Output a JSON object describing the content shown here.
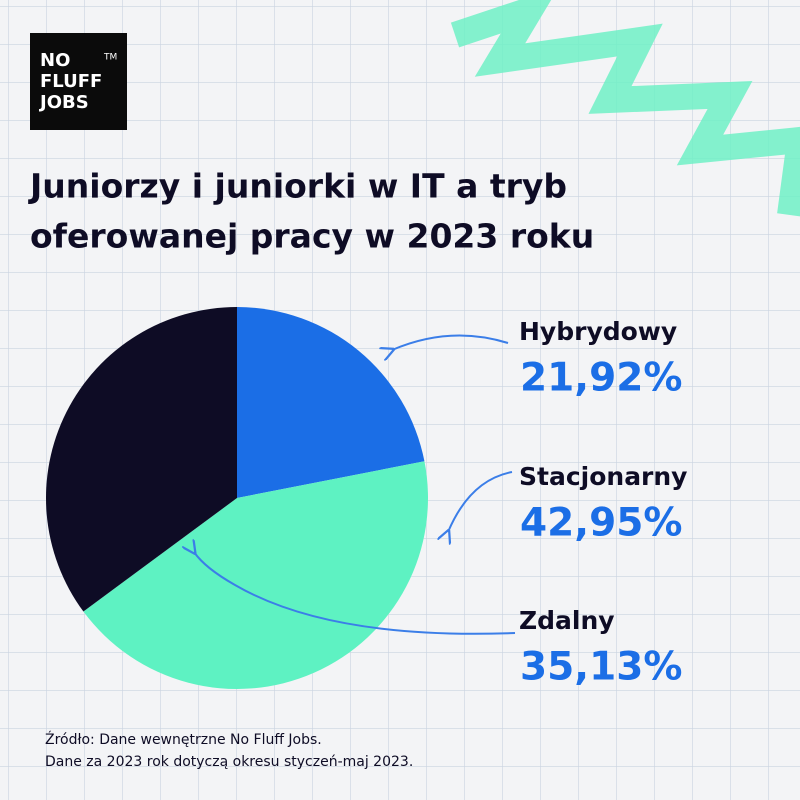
{
  "logo": {
    "lines": [
      "NO",
      "FLUFF",
      "JOBS"
    ],
    "mark": "TM"
  },
  "chart_data": {
    "type": "pie",
    "title": [
      "Juniorzy i juniorki w IT a tryb",
      "oferowanej pracy w 2023 roku"
    ],
    "categories": [
      "Hybrydowy",
      "Stacjonarny",
      "Zdalny"
    ],
    "values": [
      21.92,
      42.95,
      35.13
    ],
    "value_labels": [
      "21,92%",
      "42,95%",
      "35,13%"
    ],
    "colors": [
      "#1b6ee6",
      "#5ef2c2",
      "#0e0c25"
    ],
    "label_color": "#1b6ee6"
  },
  "source": [
    "Źródło: Dane wewnętrzne No Fluff Jobs.",
    "Dane za 2023 rok dotyczą okresu styczeń-maj 2023."
  ]
}
